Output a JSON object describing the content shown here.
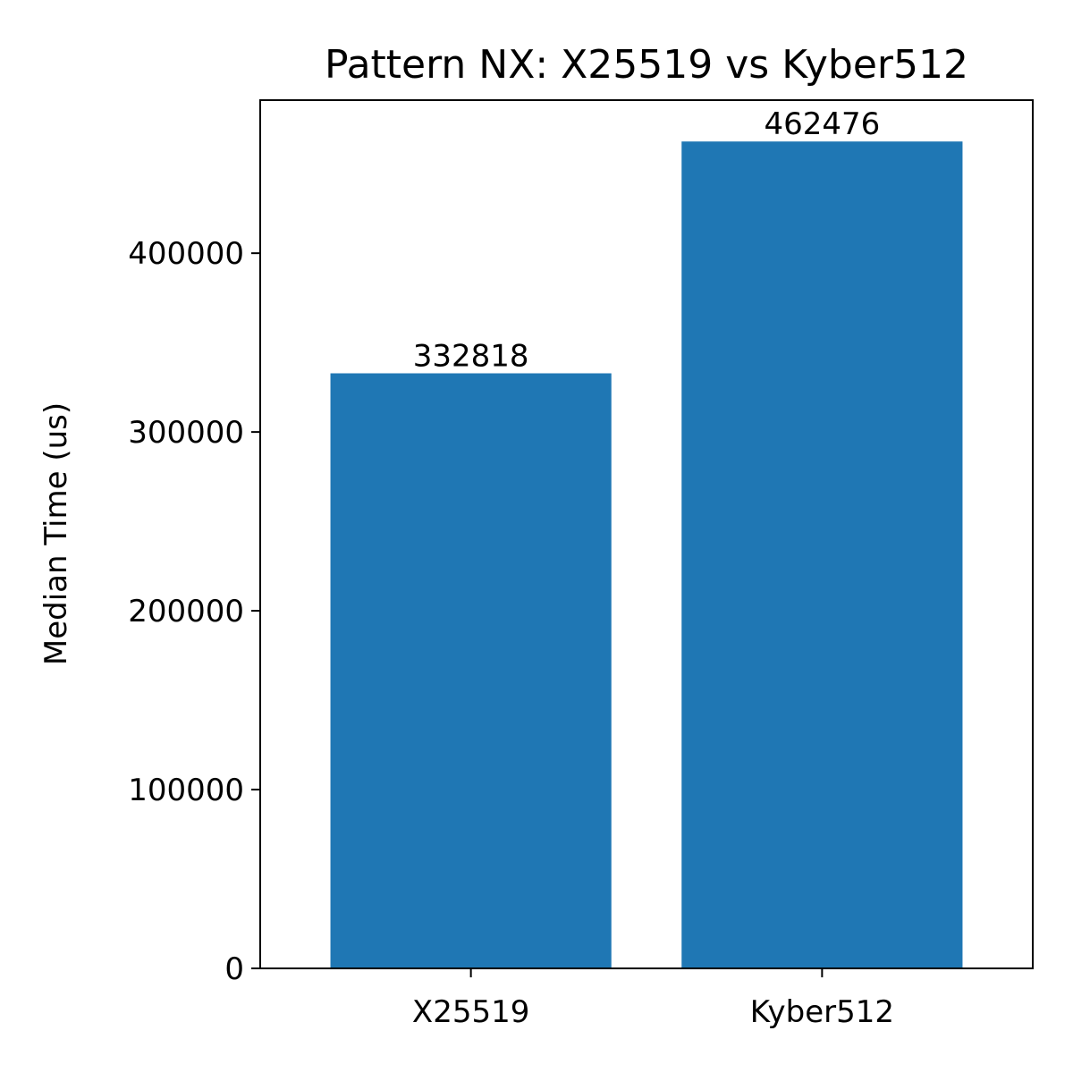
{
  "chart_data": {
    "type": "bar",
    "title": "Pattern NX: X25519 vs Kyber512",
    "xlabel": "",
    "ylabel": "Median Time (us)",
    "categories": [
      "X25519",
      "Kyber512"
    ],
    "values": [
      332818,
      462476
    ],
    "data_labels": [
      "332818",
      "462476"
    ],
    "ylim": [
      0,
      485600
    ],
    "yticks": [
      0,
      100000,
      200000,
      300000,
      400000
    ],
    "ytick_labels": [
      "0",
      "100000",
      "200000",
      "300000",
      "400000"
    ],
    "bar_color": "#1f77b4",
    "grid": false,
    "legend": "none"
  }
}
